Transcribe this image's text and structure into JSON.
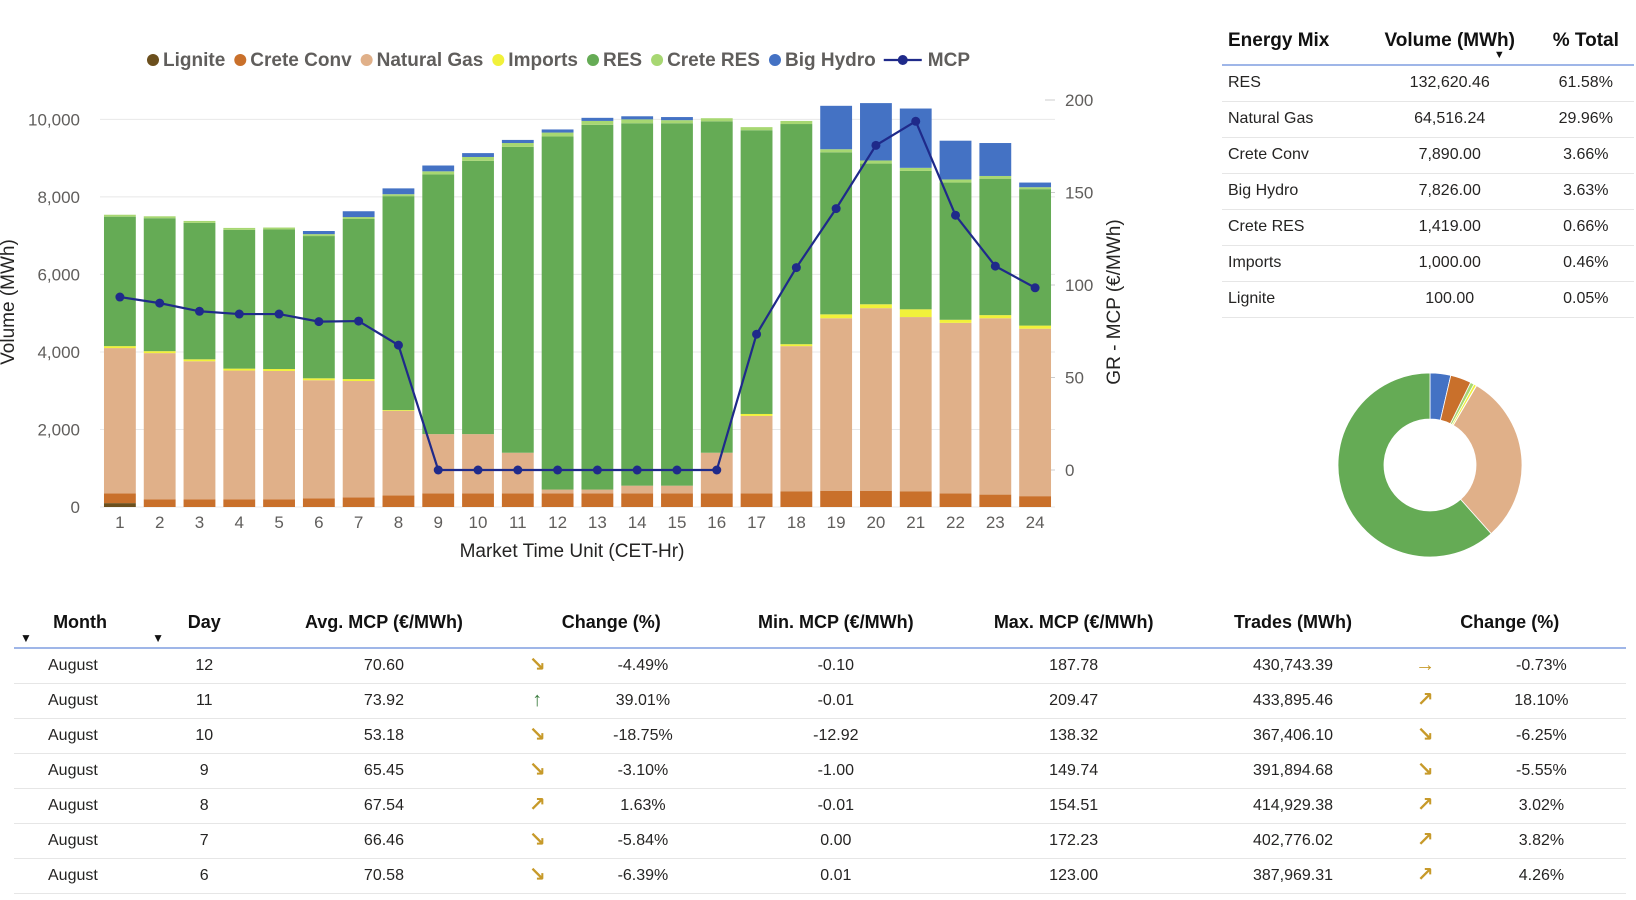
{
  "chart_data": {
    "type": "bar",
    "subtype": "stacked-bar-with-line",
    "xlabel": "Market Time Unit (CET-Hr)",
    "ylabel": "Volume (MWh)",
    "y2label": "GR - MCP (€/MWh)",
    "ylim": [
      0,
      10500
    ],
    "y2lim": [
      -20,
      200
    ],
    "yticks": [
      "0",
      "2,000",
      "4,000",
      "6,000",
      "8,000",
      "10,000"
    ],
    "y2ticks": [
      "0",
      "50",
      "100",
      "150",
      "200"
    ],
    "categories": [
      "1",
      "2",
      "3",
      "4",
      "5",
      "6",
      "7",
      "8",
      "9",
      "10",
      "11",
      "12",
      "13",
      "14",
      "15",
      "16",
      "17",
      "18",
      "19",
      "20",
      "21",
      "22",
      "23",
      "24"
    ],
    "legend_position": "top",
    "series": [
      {
        "name": "Lignite",
        "color": "#6b4f1d",
        "values": [
          100,
          0,
          0,
          0,
          0,
          0,
          0,
          0,
          0,
          0,
          0,
          0,
          0,
          0,
          0,
          0,
          0,
          0,
          0,
          0,
          0,
          0,
          0,
          0
        ]
      },
      {
        "name": "Crete Conv",
        "color": "#c9702b",
        "values": [
          250,
          200,
          200,
          200,
          200,
          220,
          250,
          300,
          350,
          350,
          350,
          350,
          350,
          350,
          350,
          350,
          350,
          400,
          420,
          420,
          400,
          350,
          320,
          280
        ]
      },
      {
        "name": "Natural Gas",
        "color": "#e0b089",
        "values": [
          3750,
          3770,
          3560,
          3320,
          3310,
          3050,
          3000,
          2180,
          1530,
          1530,
          1050,
          100,
          100,
          200,
          200,
          1050,
          2000,
          3750,
          4450,
          4710,
          4500,
          4400,
          4550,
          4320
        ]
      },
      {
        "name": "Imports",
        "color": "#f1f13a",
        "values": [
          50,
          50,
          50,
          50,
          50,
          50,
          50,
          20,
          0,
          0,
          0,
          0,
          0,
          0,
          0,
          0,
          50,
          50,
          100,
          100,
          200,
          80,
          80,
          80
        ]
      },
      {
        "name": "RES",
        "color": "#65ab55",
        "values": [
          3340,
          3430,
          3520,
          3580,
          3600,
          3670,
          4130,
          5520,
          6700,
          7050,
          7890,
          9110,
          9410,
          9350,
          9350,
          8550,
          7320,
          5680,
          4180,
          3630,
          3570,
          3540,
          3520,
          3520
        ]
      },
      {
        "name": "Crete RES",
        "color": "#a7d772",
        "values": [
          50,
          50,
          50,
          50,
          50,
          50,
          50,
          50,
          80,
          100,
          100,
          100,
          100,
          100,
          80,
          80,
          80,
          80,
          80,
          80,
          80,
          80,
          70,
          50
        ]
      },
      {
        "name": "Big Hydro",
        "color": "#4472c4",
        "values": [
          0,
          0,
          0,
          0,
          0,
          80,
          150,
          150,
          150,
          100,
          80,
          80,
          80,
          80,
          80,
          0,
          0,
          0,
          1120,
          1480,
          1530,
          1000,
          850,
          120
        ]
      }
    ],
    "line": {
      "name": "MCP",
      "color": "#1f2a8a",
      "values": [
        93.5,
        90.2,
        85.8,
        84.3,
        84.3,
        80.2,
        80.5,
        67.5,
        0,
        0,
        0,
        0,
        0,
        0,
        0,
        0,
        73.4,
        109.4,
        141.3,
        175.5,
        188.5,
        137.7,
        110.2,
        98.5
      ]
    }
  },
  "energy_mix": {
    "headers": {
      "name": "Energy Mix",
      "volume": "Volume (MWh)",
      "pct": "% Total"
    },
    "rows": [
      {
        "name": "RES",
        "volume": "132,620.46",
        "pct": "61.58%",
        "value": 61.58,
        "color": "#65ab55"
      },
      {
        "name": "Natural Gas",
        "volume": "64,516.24",
        "pct": "29.96%",
        "value": 29.96,
        "color": "#e0b089"
      },
      {
        "name": "Crete Conv",
        "volume": "7,890.00",
        "pct": "3.66%",
        "value": 3.66,
        "color": "#c9702b"
      },
      {
        "name": "Big Hydro",
        "volume": "7,826.00",
        "pct": "3.63%",
        "value": 3.63,
        "color": "#4472c4"
      },
      {
        "name": "Crete RES",
        "volume": "1,419.00",
        "pct": "0.66%",
        "value": 0.66,
        "color": "#a7d772"
      },
      {
        "name": "Imports",
        "volume": "1,000.00",
        "pct": "0.46%",
        "value": 0.46,
        "color": "#f1f13a"
      },
      {
        "name": "Lignite",
        "volume": "100.00",
        "pct": "0.05%",
        "value": 0.05,
        "color": "#6b4f1d"
      }
    ],
    "donut_order": [
      "Big Hydro",
      "Crete Conv",
      "Crete RES",
      "Imports",
      "Lignite",
      "Natural Gas",
      "RES"
    ]
  },
  "trades": {
    "headers": {
      "month": "Month",
      "day": "Day",
      "avg": "Avg. MCP (€/MWh)",
      "change1": "Change (%)",
      "min": "Min. MCP (€/MWh)",
      "max": "Max. MCP (€/MWh)",
      "trades": "Trades (MWh)",
      "change2": "Change (%)"
    },
    "rows": [
      {
        "month": "August",
        "day": "12",
        "avg": "70.60",
        "arrow1": "↘",
        "arrow1_kind": "down",
        "change1": "-4.49%",
        "min": "-0.10",
        "max": "187.78",
        "trades": "430,743.39",
        "arrow2": "→",
        "arrow2_kind": "flat",
        "change2": "-0.73%"
      },
      {
        "month": "August",
        "day": "11",
        "avg": "73.92",
        "arrow1": "↑",
        "arrow1_kind": "strong-up",
        "change1": "39.01%",
        "min": "-0.01",
        "max": "209.47",
        "trades": "433,895.46",
        "arrow2": "↗",
        "arrow2_kind": "up",
        "change2": "18.10%"
      },
      {
        "month": "August",
        "day": "10",
        "avg": "53.18",
        "arrow1": "↘",
        "arrow1_kind": "down",
        "change1": "-18.75%",
        "min": "-12.92",
        "max": "138.32",
        "trades": "367,406.10",
        "arrow2": "↘",
        "arrow2_kind": "down",
        "change2": "-6.25%"
      },
      {
        "month": "August",
        "day": "9",
        "avg": "65.45",
        "arrow1": "↘",
        "arrow1_kind": "down",
        "change1": "-3.10%",
        "min": "-1.00",
        "max": "149.74",
        "trades": "391,894.68",
        "arrow2": "↘",
        "arrow2_kind": "down",
        "change2": "-5.55%"
      },
      {
        "month": "August",
        "day": "8",
        "avg": "67.54",
        "arrow1": "↗",
        "arrow1_kind": "up",
        "change1": "1.63%",
        "min": "-0.01",
        "max": "154.51",
        "trades": "414,929.38",
        "arrow2": "↗",
        "arrow2_kind": "up",
        "change2": "3.02%"
      },
      {
        "month": "August",
        "day": "7",
        "avg": "66.46",
        "arrow1": "↘",
        "arrow1_kind": "down",
        "change1": "-5.84%",
        "min": "0.00",
        "max": "172.23",
        "trades": "402,776.02",
        "arrow2": "↗",
        "arrow2_kind": "up",
        "change2": "3.82%"
      },
      {
        "month": "August",
        "day": "6",
        "avg": "70.58",
        "arrow1": "↘",
        "arrow1_kind": "down",
        "change1": "-6.39%",
        "min": "0.01",
        "max": "123.00",
        "trades": "387,969.31",
        "arrow2": "↗",
        "arrow2_kind": "up",
        "change2": "4.26%"
      }
    ]
  }
}
